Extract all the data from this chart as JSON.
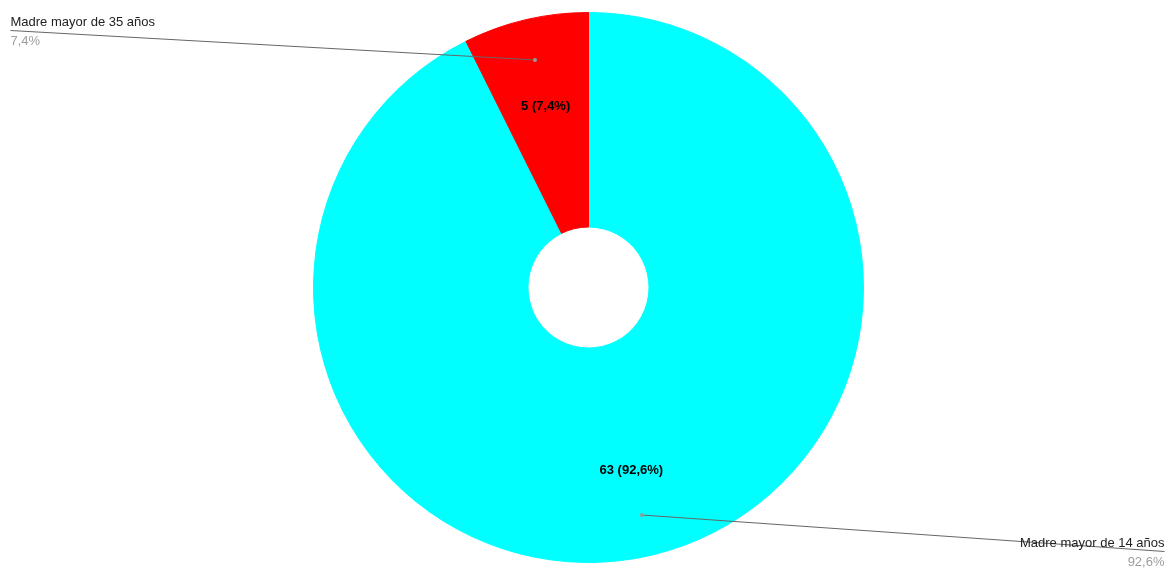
{
  "chart_data": {
    "type": "donut",
    "categories": [
      "Madre mayor de 14 años",
      "Madre mayor de 35 años"
    ],
    "values": [
      63,
      5
    ],
    "colors": [
      "#00ffff",
      "#ff0000"
    ],
    "value_labels": [
      "63 (92,6%)",
      "5 (7,4%)"
    ],
    "annotations": [
      "92,6%",
      "7,4%"
    ]
  }
}
